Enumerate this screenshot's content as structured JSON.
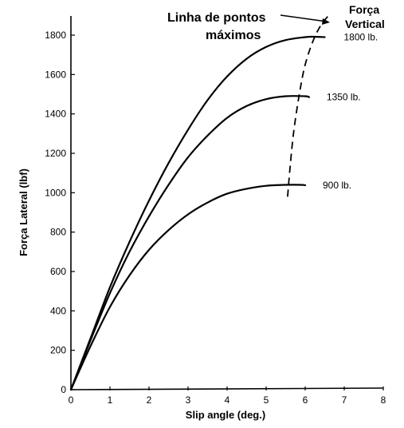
{
  "chart_data": {
    "type": "line",
    "xlabel": "Slip angle (deg.)",
    "ylabel": "Força Lateral (lbf)",
    "xlim": [
      0,
      8
    ],
    "ylim": [
      0,
      1900
    ],
    "xticks": [
      0,
      1,
      2,
      3,
      4,
      5,
      6,
      7,
      8
    ],
    "yticks": [
      0,
      200,
      400,
      600,
      800,
      1000,
      1200,
      1400,
      1600,
      1800
    ],
    "grid": false,
    "legend_title": [
      "Força",
      "Vertical"
    ],
    "annotation": [
      "Linha de pontos",
      "máximos"
    ],
    "series": [
      {
        "name": "1800 lb.",
        "peak": 1790,
        "x": [
          0,
          0.5,
          1,
          1.5,
          2,
          2.5,
          3,
          3.5,
          4,
          4.5,
          5,
          5.5,
          6,
          6.2,
          6.5
        ],
        "y": [
          0,
          260,
          520,
          750,
          960,
          1150,
          1320,
          1470,
          1590,
          1680,
          1740,
          1775,
          1790,
          1792,
          1790
        ]
      },
      {
        "name": "1350 lb.",
        "peak": 1490,
        "x": [
          0,
          0.5,
          1,
          1.5,
          2,
          2.5,
          3,
          3.5,
          4,
          4.5,
          5,
          5.5,
          6,
          6.1
        ],
        "y": [
          0,
          250,
          490,
          700,
          880,
          1040,
          1180,
          1290,
          1380,
          1440,
          1475,
          1490,
          1490,
          1485
        ]
      },
      {
        "name": "900 lb.",
        "peak": 1040,
        "x": [
          0,
          0.5,
          1,
          1.5,
          2,
          2.5,
          3,
          3.5,
          4,
          4.5,
          5,
          5.5,
          5.9,
          6.0
        ],
        "y": [
          0,
          220,
          420,
          580,
          710,
          810,
          890,
          950,
          995,
          1020,
          1035,
          1040,
          1040,
          1038
        ]
      }
    ],
    "max_points_line": {
      "style": "dashed",
      "x": [
        5.55,
        5.6,
        5.7,
        5.85,
        6.0,
        6.2,
        6.4,
        6.6
      ],
      "y": [
        980,
        1100,
        1300,
        1500,
        1650,
        1770,
        1850,
        1900
      ]
    }
  }
}
